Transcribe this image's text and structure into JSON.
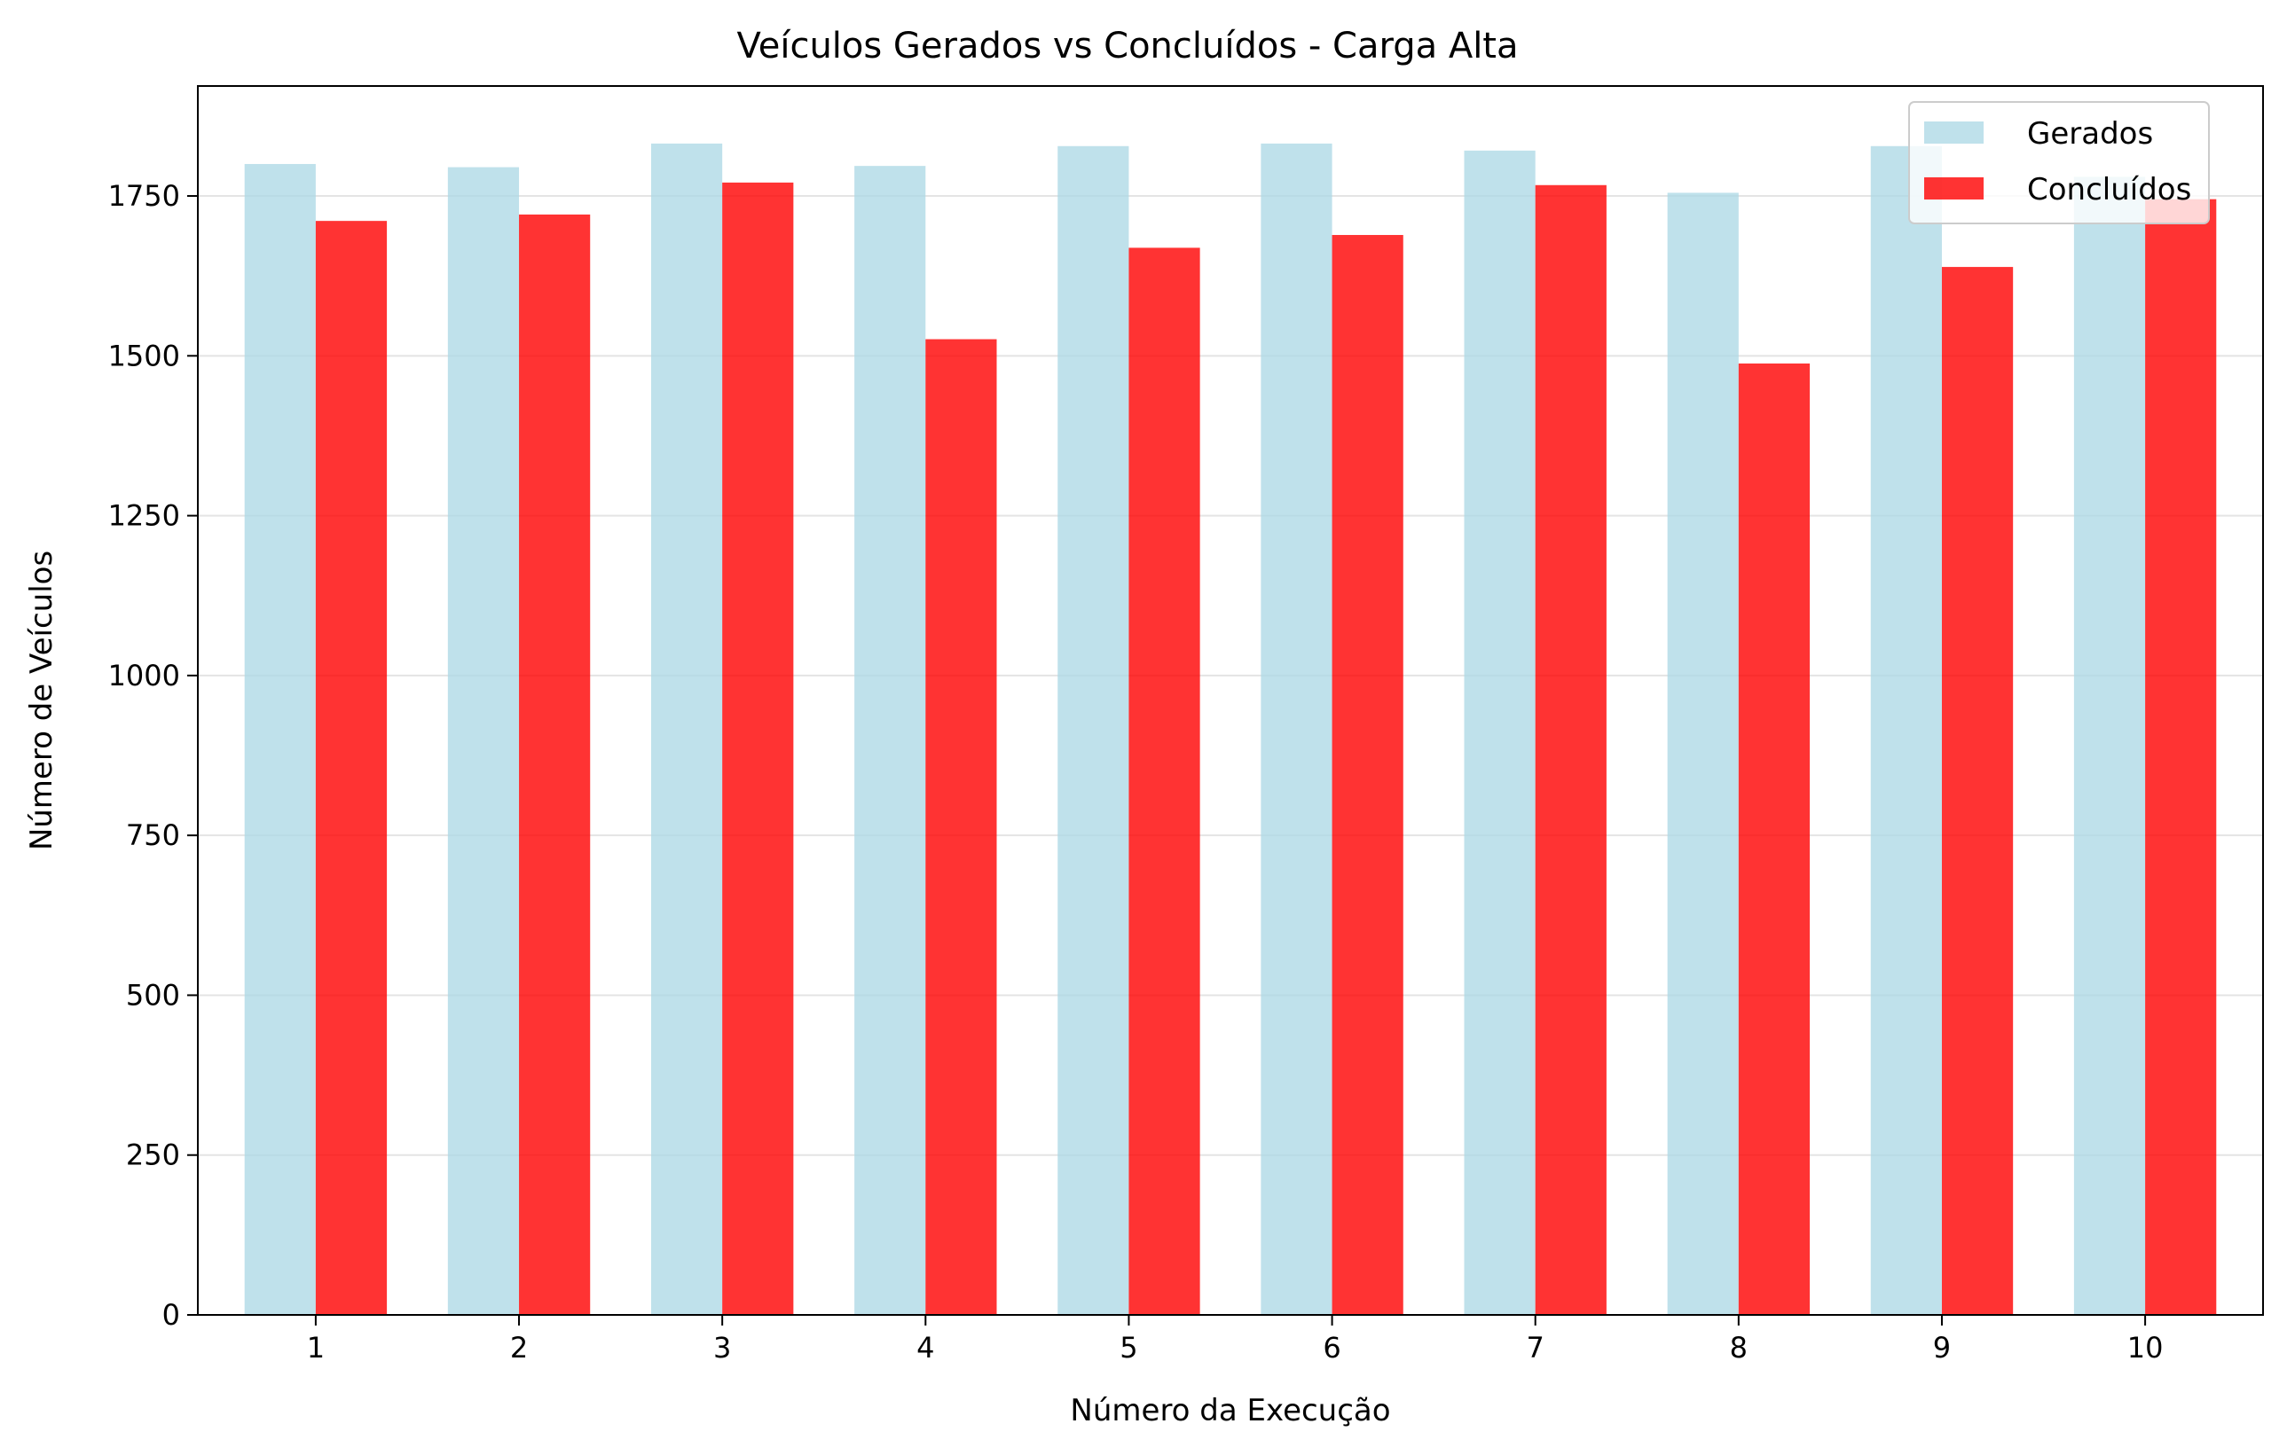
{
  "chart_data": {
    "type": "bar",
    "title": "Veículos Gerados vs Concluídos - Carga Alta",
    "xlabel": "Número da Execução",
    "ylabel": "Número de Veículos",
    "categories": [
      "1",
      "2",
      "3",
      "4",
      "5",
      "6",
      "7",
      "8",
      "9",
      "10"
    ],
    "series": [
      {
        "name": "Gerados",
        "color": "#add8e6",
        "values": [
          1800,
          1795,
          1832,
          1797,
          1828,
          1832,
          1821,
          1755,
          1828,
          1780
        ]
      },
      {
        "name": "Concluídos",
        "color": "#ff0000",
        "values": [
          1711,
          1721,
          1771,
          1526,
          1669,
          1689,
          1767,
          1488,
          1639,
          1745
        ]
      }
    ],
    "ylim": [
      0,
      1922
    ],
    "yticks": [
      0,
      250,
      500,
      750,
      1000,
      1250,
      1500,
      1750
    ],
    "grid": "horizontal",
    "legend_position": "top-right"
  }
}
